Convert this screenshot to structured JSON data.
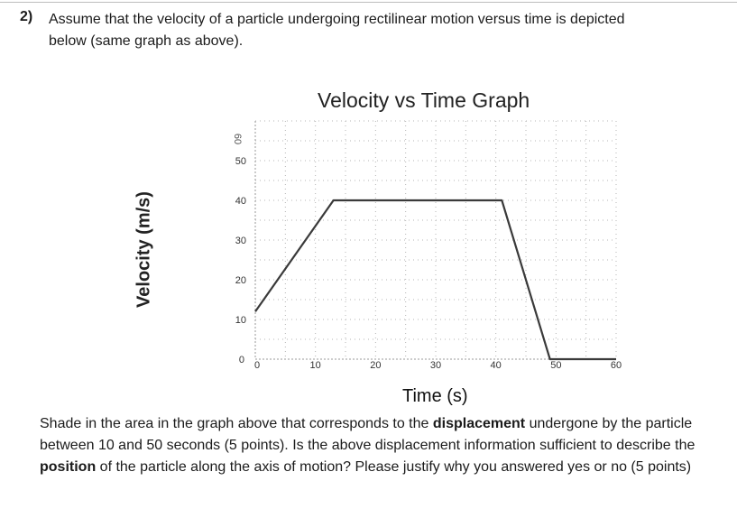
{
  "question": {
    "number": "2)",
    "text_line1": "Assume that the velocity of a particle undergoing rectilinear motion versus time is depicted",
    "text_line2": "below (same graph as above)."
  },
  "chart_data": {
    "type": "line",
    "title": "Velocity vs Time Graph",
    "xlabel": "Time (s)",
    "ylabel": "Velocity (m/s)",
    "x_ticks": [
      "0",
      "10",
      "20",
      "30",
      "40",
      "50",
      "60"
    ],
    "y_ticks": [
      "0",
      "10",
      "20",
      "30",
      "40",
      "50"
    ],
    "y_top_tick": "60",
    "xlim": [
      0,
      60
    ],
    "ylim": [
      0,
      60
    ],
    "grid": true,
    "series": [
      {
        "x": [
          0,
          13,
          41,
          49,
          60
        ],
        "y": [
          12,
          40,
          40,
          0,
          0
        ],
        "color": "#3a3a3a"
      }
    ]
  },
  "instructions": {
    "part1": "Shade in the area in the graph above that corresponds to the ",
    "bold1": "displacement",
    "part2": " undergone by the particle between 10 and 50 seconds (5 points). Is the above displacement information sufficient to describe the ",
    "bold2": "position",
    "part3": " of the particle along the axis of motion? Please justify why you answered yes or no (5 points)"
  }
}
